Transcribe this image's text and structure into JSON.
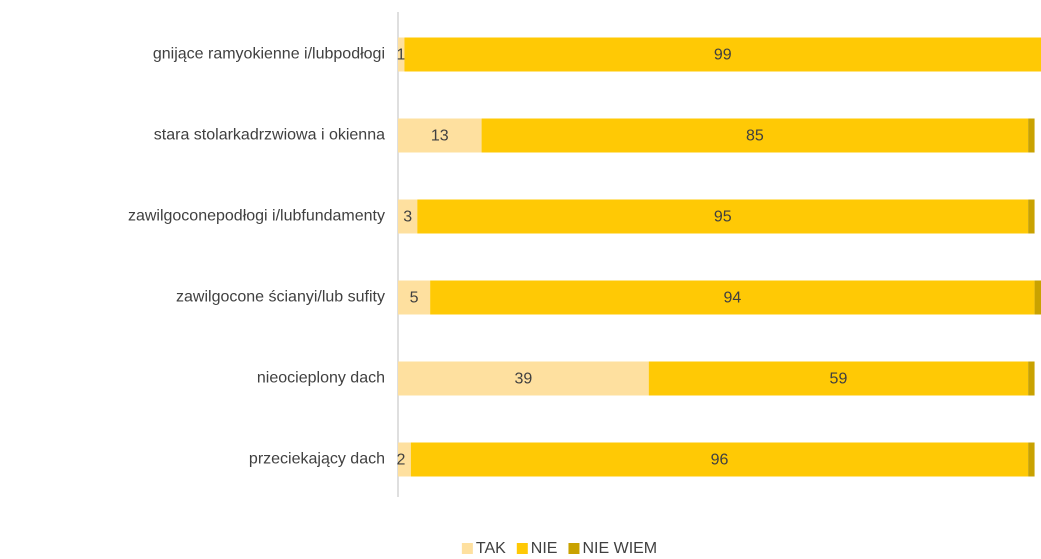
{
  "chart_data": {
    "type": "stacked-barh",
    "categories": [
      "gnijące ramyokienne i/lubpodłogi",
      "stara stolarkadrzwiowa i okienna",
      "zawilgoconepodłogi i/lubfundamenty",
      "zawilgocone ścianyi/lub sufity",
      "nieocieplony dach",
      "przeciekający dach"
    ],
    "series": [
      {
        "name": "TAK",
        "color": "#fee09f",
        "values": [
          1,
          13,
          3,
          5,
          39,
          2
        ]
      },
      {
        "name": "NIE",
        "color": "#ffc905",
        "values": [
          99,
          85,
          95,
          94,
          59,
          96
        ]
      },
      {
        "name": "NIE WIEM",
        "color": "#c9a200",
        "values": [
          0,
          1,
          1,
          1,
          1,
          1
        ]
      }
    ],
    "xlim": [
      0,
      100
    ],
    "data_labels": [
      "TAK",
      "NIE"
    ],
    "legend": "bottom"
  }
}
